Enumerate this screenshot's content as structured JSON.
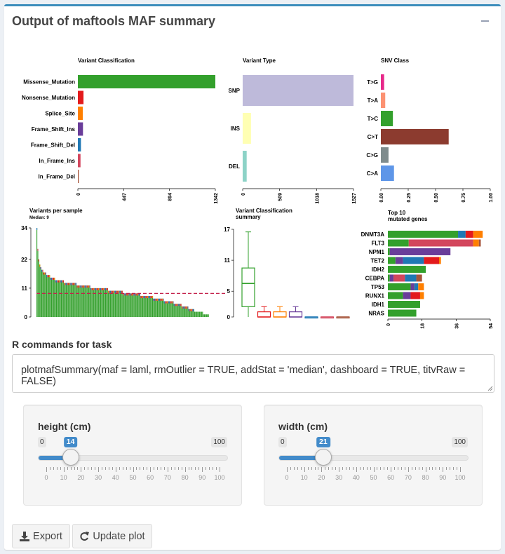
{
  "box": {
    "title": "Output of maftools MAF summary"
  },
  "chart_data": [
    {
      "type": "bar",
      "title": "Variant Classification",
      "orientation": "horizontal",
      "categories": [
        "Missense_Mutation",
        "Nonsense_Mutation",
        "Splice_Site",
        "Frame_Shift_Ins",
        "Frame_Shift_Del",
        "In_Frame_Ins",
        "In_Frame_Del"
      ],
      "values": [
        1342,
        55,
        48,
        50,
        30,
        26,
        9
      ],
      "colors": [
        "#33a02c",
        "#e31a1c",
        "#ff7f00",
        "#6a3d9a",
        "#1f78b4",
        "#d3465d",
        "#a6553b"
      ],
      "ticks": [
        "0",
        "447",
        "894",
        "1342"
      ],
      "xlim": [
        0,
        1342
      ]
    },
    {
      "type": "bar",
      "title": "Variant Type",
      "orientation": "horizontal",
      "categories": [
        "SNP",
        "INS",
        "DEL"
      ],
      "values": [
        1527,
        115,
        55
      ],
      "colors": [
        "#bebada",
        "#ffffb3",
        "#8dd3c7"
      ],
      "ticks": [
        "0",
        "509",
        "1018",
        "1527"
      ],
      "xlim": [
        0,
        1527
      ]
    },
    {
      "type": "bar",
      "title": "SNV Class",
      "orientation": "horizontal",
      "categories": [
        "T>G",
        "T>A",
        "T>C",
        "C>T",
        "C>G",
        "C>A"
      ],
      "values": [
        0.03,
        0.04,
        0.11,
        0.62,
        0.07,
        0.12
      ],
      "colors": [
        "#e7298a",
        "#fc9272",
        "#33a02c",
        "#8c3b2f",
        "#7f8c8d",
        "#5e96e8"
      ],
      "ticks": [
        "0.00",
        "0.25",
        "0.50",
        "0.75",
        "1.00"
      ],
      "xlim": [
        0,
        1
      ]
    },
    {
      "type": "bar",
      "title": "Variants per sample",
      "subtitle": "Median: 9",
      "yticks": [
        "0",
        "11",
        "22",
        "34"
      ],
      "ylim": [
        0,
        34
      ],
      "median": 9,
      "values": [
        34,
        26,
        22,
        20,
        19,
        18,
        18,
        17,
        17,
        17,
        16,
        16,
        16,
        16,
        15,
        15,
        15,
        15,
        15,
        14,
        14,
        14,
        14,
        14,
        14,
        14,
        14,
        14,
        13,
        13,
        13,
        13,
        13,
        13,
        13,
        13,
        13,
        13,
        13,
        13,
        13,
        12,
        12,
        12,
        12,
        12,
        12,
        12,
        12,
        12,
        12,
        12,
        12,
        12,
        12,
        11,
        11,
        11,
        11,
        11,
        11,
        11,
        11,
        11,
        11,
        11,
        11,
        11,
        11,
        11,
        11,
        11,
        11,
        10,
        10,
        10,
        10,
        10,
        10,
        10,
        10,
        10,
        10,
        10,
        10,
        10,
        10,
        10,
        9,
        9,
        9,
        9,
        9,
        9,
        9,
        9,
        9,
        9,
        9,
        9,
        9,
        9,
        9,
        9,
        9,
        9,
        8,
        8,
        8,
        8,
        8,
        8,
        8,
        8,
        8,
        8,
        8,
        8,
        8,
        7,
        7,
        7,
        7,
        7,
        7,
        7,
        7,
        7,
        7,
        7,
        6,
        6,
        6,
        6,
        6,
        6,
        6,
        6,
        6,
        6,
        5,
        5,
        5,
        5,
        5,
        5,
        5,
        5,
        4,
        4,
        4,
        4,
        4,
        4,
        4,
        3,
        3,
        3,
        3,
        3,
        3,
        2,
        2,
        2,
        2,
        2,
        2,
        2,
        2,
        2,
        1,
        1,
        1,
        1,
        1,
        1
      ]
    },
    {
      "type": "box",
      "title": "Variant Classification\nsummary",
      "title_lines": [
        "Variant Classification",
        "summary"
      ],
      "yticks": [
        "0",
        "5",
        "11",
        "17"
      ],
      "ylim": [
        0,
        17
      ],
      "boxes": [
        {
          "color": "#33a02c",
          "min": 0,
          "q1": 2,
          "median": 6.5,
          "q3": 9.5,
          "max": 16.5
        },
        {
          "color": "#e31a1c",
          "min": 0,
          "q1": 0,
          "median": 0,
          "q3": 1,
          "max": 2
        },
        {
          "color": "#ff7f00",
          "min": 0,
          "q1": 0,
          "median": 0,
          "q3": 1,
          "max": 2
        },
        {
          "color": "#6a3d9a",
          "min": 0,
          "q1": 0,
          "median": 0,
          "q3": 1,
          "max": 2
        },
        {
          "color": "#1f78b4",
          "min": 0,
          "q1": 0,
          "median": 0,
          "q3": 0,
          "max": 0
        },
        {
          "color": "#d3465d",
          "min": 0,
          "q1": 0,
          "median": 0,
          "q3": 0,
          "max": 0
        },
        {
          "color": "#a6553b",
          "min": 0,
          "q1": 0,
          "median": 0,
          "q3": 0,
          "max": 0
        }
      ]
    },
    {
      "type": "bar",
      "title": "Top 10\nmutated genes",
      "title_lines": [
        "Top 10",
        "mutated genes"
      ],
      "orientation": "horizontal",
      "stacked": true,
      "ticks": [
        "0",
        "18",
        "36",
        "54"
      ],
      "xlim": [
        0,
        54
      ],
      "series_colors": [
        "#33a02c",
        "#1f78b4",
        "#d3465d",
        "#e31a1c",
        "#ff7f00",
        "#6a3d9a",
        "#a6553b"
      ],
      "genes": [
        {
          "name": "DNMT3A",
          "segments": [
            {
              "c": 0,
              "v": 37
            },
            {
              "c": 1,
              "v": 4
            },
            {
              "c": 3,
              "v": 4
            },
            {
              "c": 4,
              "v": 5
            }
          ]
        },
        {
          "name": "FLT3",
          "segments": [
            {
              "c": 0,
              "v": 11
            },
            {
              "c": 2,
              "v": 34
            },
            {
              "c": 4,
              "v": 3
            },
            {
              "c": 6,
              "v": 1
            }
          ]
        },
        {
          "name": "NPM1",
          "segments": [
            {
              "c": 0,
              "v": 1
            },
            {
              "c": 5,
              "v": 32
            }
          ]
        },
        {
          "name": "TET2",
          "segments": [
            {
              "c": 0,
              "v": 4
            },
            {
              "c": 5,
              "v": 4
            },
            {
              "c": 1,
              "v": 11
            },
            {
              "c": 3,
              "v": 8
            },
            {
              "c": 4,
              "v": 1
            }
          ]
        },
        {
          "name": "IDH2",
          "segments": [
            {
              "c": 0,
              "v": 20
            }
          ]
        },
        {
          "name": "CEBPA",
          "segments": [
            {
              "c": 0,
              "v": 1
            },
            {
              "c": 5,
              "v": 2
            },
            {
              "c": 2,
              "v": 6
            },
            {
              "c": 1,
              "v": 6
            },
            {
              "c": 6,
              "v": 3
            }
          ]
        },
        {
          "name": "TP53",
          "segments": [
            {
              "c": 0,
              "v": 12
            },
            {
              "c": 5,
              "v": 2
            },
            {
              "c": 1,
              "v": 2
            },
            {
              "c": 4,
              "v": 3
            }
          ]
        },
        {
          "name": "RUNX1",
          "segments": [
            {
              "c": 0,
              "v": 8
            },
            {
              "c": 5,
              "v": 4
            },
            {
              "c": 3,
              "v": 5
            },
            {
              "c": 4,
              "v": 2
            }
          ]
        },
        {
          "name": "IDH1",
          "segments": [
            {
              "c": 0,
              "v": 17
            }
          ]
        },
        {
          "name": "NRAS",
          "segments": [
            {
              "c": 0,
              "v": 15
            }
          ]
        }
      ]
    }
  ],
  "task": {
    "title": "R commands for task",
    "command": "plotmafSummary(maf = laml, rmOutlier = TRUE, addStat = 'median', dashboard = TRUE, titvRaw = FALSE)"
  },
  "sliders": [
    {
      "label": "height (cm)",
      "min": 0,
      "max": 100,
      "value": 14,
      "min_label": "0",
      "max_label": "100",
      "value_label": "14",
      "tick_labels": [
        "0",
        "10",
        "20",
        "30",
        "40",
        "50",
        "60",
        "70",
        "80",
        "90",
        "100"
      ]
    },
    {
      "label": "width (cm)",
      "min": 0,
      "max": 100,
      "value": 21,
      "min_label": "0",
      "max_label": "100",
      "value_label": "21",
      "tick_labels": [
        "0",
        "10",
        "20",
        "30",
        "40",
        "50",
        "60",
        "70",
        "80",
        "90",
        "100"
      ]
    }
  ],
  "buttons": {
    "export": "Export",
    "update": "Update plot"
  },
  "icons": {
    "collapse": "minus-icon",
    "export": "download-icon",
    "update": "refresh-icon"
  },
  "colors": {
    "accent": "#3c8dbc",
    "slider": "#428bca"
  }
}
